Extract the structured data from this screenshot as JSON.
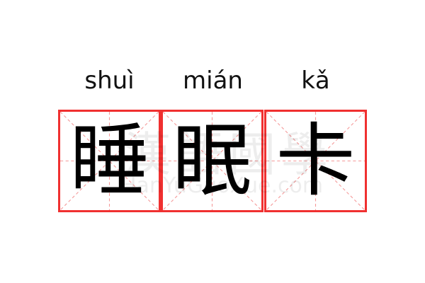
{
  "word": [
    {
      "pinyin": "shuì",
      "hanzi": "睡"
    },
    {
      "pinyin": "mián",
      "hanzi": "眠"
    },
    {
      "pinyin": "kǎ",
      "hanzi": "卡"
    }
  ],
  "watermark": {
    "logo": "漢語國學",
    "site": "HanYuGuoXue.com"
  },
  "colors": {
    "grid_border": "#f03030",
    "guide_lines": "#f59a9a",
    "text": "#000000"
  }
}
